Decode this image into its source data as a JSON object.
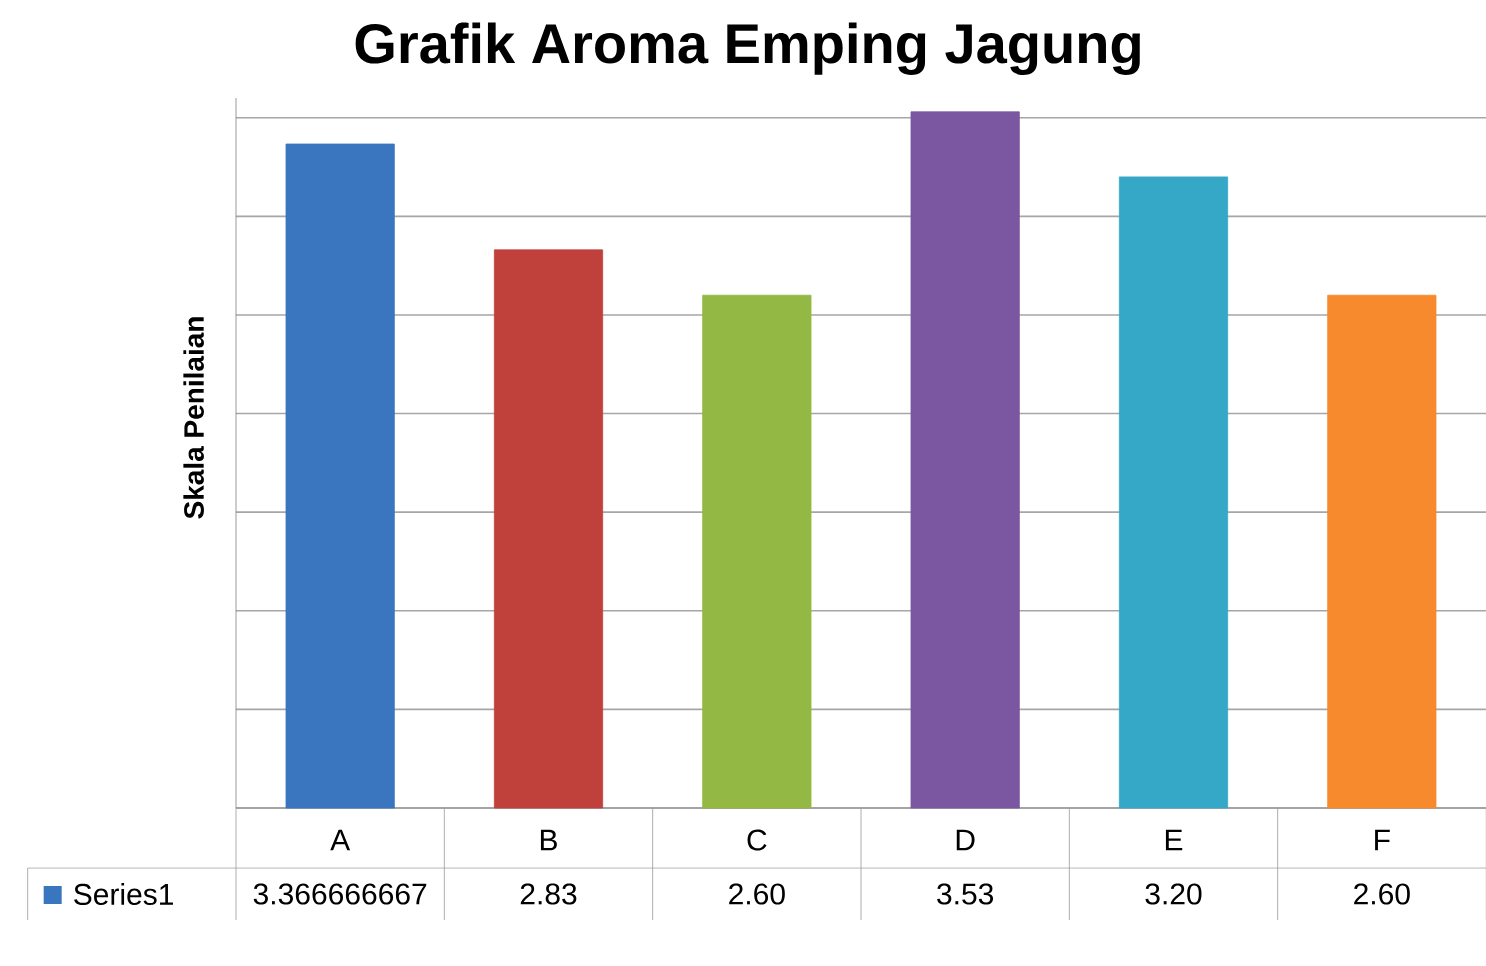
{
  "chart_data": {
    "type": "bar",
    "title": "Grafik Aroma Emping Jagung",
    "ylabel": "Skala Penilaian",
    "categories": [
      "A",
      "B",
      "C",
      "D",
      "E",
      "F"
    ],
    "series": [
      {
        "name": "Series1",
        "colors": [
          "#3a75c0",
          "#c0403c",
          "#93b843",
          "#7a57a0",
          "#35a8c8",
          "#f68a2c"
        ],
        "values": [
          3.366666667,
          2.83,
          2.6,
          3.53,
          3.2,
          2.6
        ],
        "value_labels": [
          "3.366666667",
          "2.83",
          "2.60",
          "3.53",
          "3.20",
          "2.60"
        ]
      }
    ],
    "ylim": [
      0,
      3.6
    ],
    "yticks": [
      {
        "value": 0,
        "label": null
      },
      {
        "value": 0.5,
        "label": null
      },
      {
        "value": 1,
        "label": null
      },
      {
        "value": 1.5,
        "label": null
      },
      {
        "value": 2,
        "label": null
      },
      {
        "value": 2.5,
        "label": null
      },
      {
        "value": 3,
        "label": null
      },
      {
        "value": 3.5,
        "label": null
      }
    ],
    "grid": "y",
    "legend": "bottom"
  }
}
